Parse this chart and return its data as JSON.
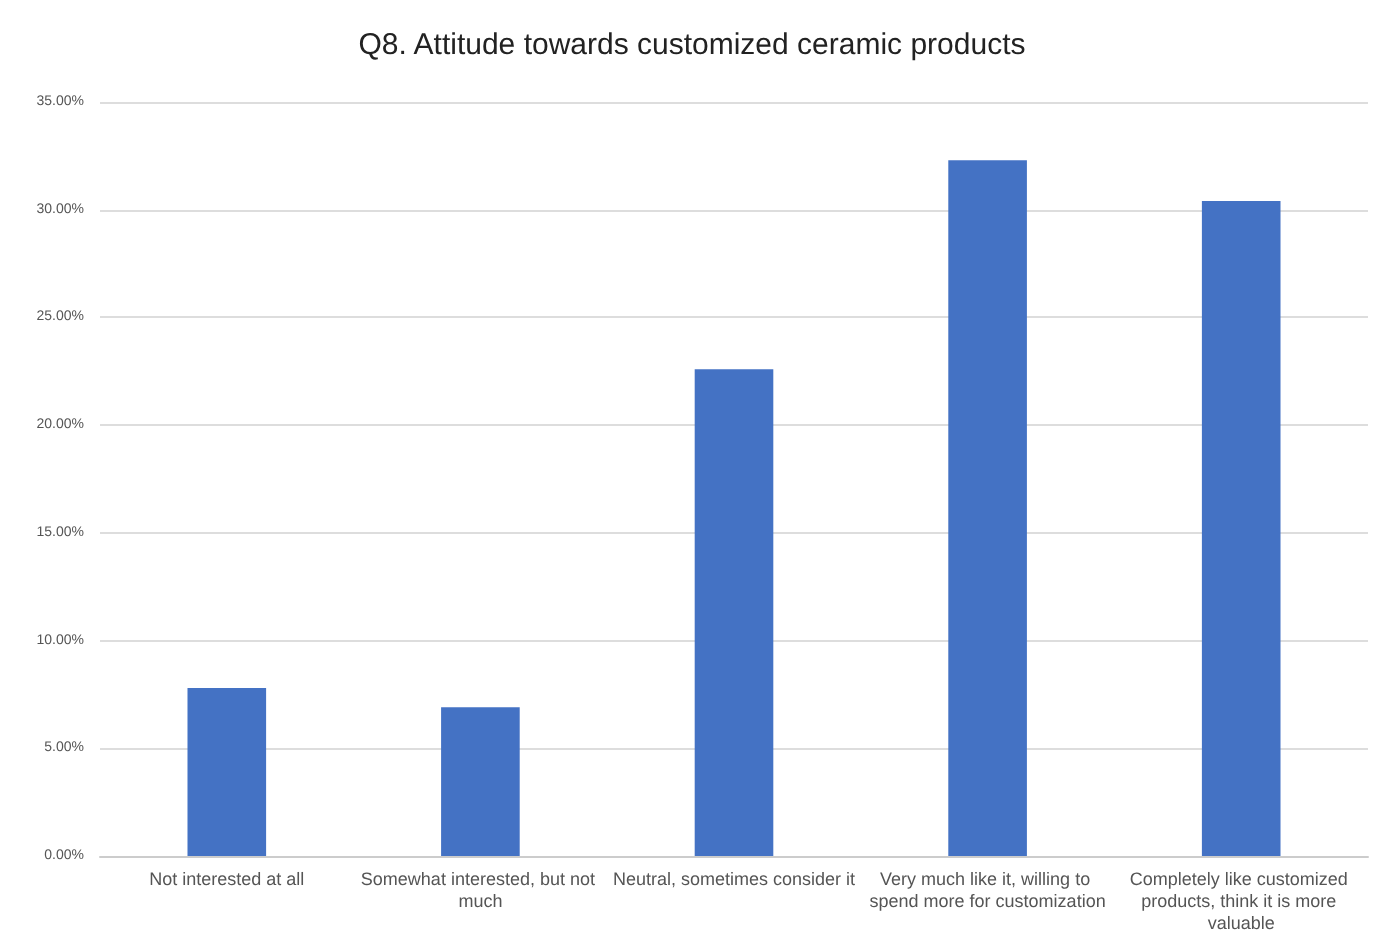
{
  "chart_data": {
    "type": "bar",
    "title": "Q8. Attitude towards customized ceramic products",
    "categories": [
      "Not interested at all",
      "Somewhat interested, but not much",
      "Neutral, sometimes consider it",
      "Very much like it, willing to spend more for customization",
      "Completely like customized products, think it is more valuable"
    ],
    "values": [
      7.8,
      6.9,
      22.6,
      32.3,
      30.4
    ],
    "color": "#4472c4",
    "ylim": [
      0,
      35
    ],
    "yticks": [
      {
        "value": 0,
        "label": "0.00%"
      },
      {
        "value": 5,
        "label": "5.00%"
      },
      {
        "value": 10,
        "label": "10.00%"
      },
      {
        "value": 15,
        "label": "15.00%"
      },
      {
        "value": 20,
        "label": "20.00%"
      },
      {
        "value": 25,
        "label": "25.00%"
      },
      {
        "value": 30,
        "label": "30.00%"
      },
      {
        "value": 35,
        "label": "35.00%"
      }
    ],
    "grid": true
  }
}
